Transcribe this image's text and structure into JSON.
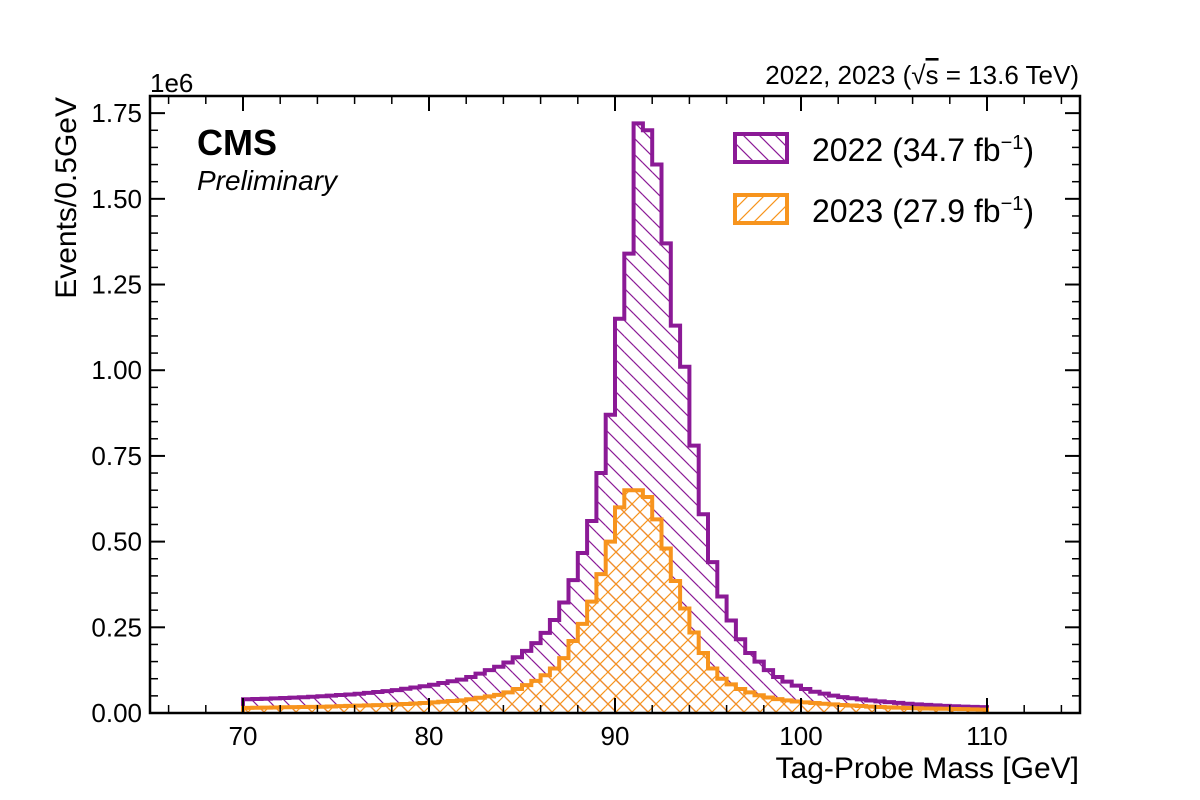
{
  "chart_data": {
    "type": "histogram",
    "header_left": "1e6",
    "header_right": "2022, 2023 (",
    "header_sqrt": "√",
    "header_s": "s",
    "header_right_tail": " = 13.6 TeV)",
    "cms_label": "CMS",
    "cms_sublabel": "Preliminary",
    "xlabel": "Tag-Probe Mass [GeV]",
    "ylabel": "Events/0.5GeV",
    "xlim": [
      65,
      115
    ],
    "ylim": [
      0,
      1.8
    ],
    "y_scale_factor": 1000000,
    "x_ticks": [
      70,
      80,
      90,
      100,
      110
    ],
    "x_tick_labels": [
      "70",
      "80",
      "90",
      "100",
      "110"
    ],
    "y_ticks": [
      0,
      0.25,
      0.5,
      0.75,
      1.0,
      1.25,
      1.5,
      1.75
    ],
    "y_tick_labels": [
      "0.00",
      "0.25",
      "0.50",
      "0.75",
      "1.00",
      "1.25",
      "1.50",
      "1.75"
    ],
    "bin_edges_start": 70,
    "bin_width": 0.5,
    "series": [
      {
        "name": "2022 (34.7 fb",
        "name_sup": "−1",
        "name_close": ")",
        "color": "#8b1a96",
        "hatch": "backslash",
        "anchors": [
          [
            70.25,
            0.04
          ],
          [
            72,
            0.043
          ],
          [
            74,
            0.048
          ],
          [
            76,
            0.055
          ],
          [
            78,
            0.065
          ],
          [
            80,
            0.08
          ],
          [
            82,
            0.1
          ],
          [
            84,
            0.14
          ],
          [
            85,
            0.17
          ],
          [
            86,
            0.215
          ],
          [
            87,
            0.29
          ],
          [
            88,
            0.42
          ],
          [
            88.75,
            0.56
          ],
          [
            89.25,
            0.7
          ],
          [
            89.75,
            0.87
          ],
          [
            90.25,
            1.15
          ],
          [
            90.75,
            1.34
          ],
          [
            91.25,
            1.72
          ],
          [
            91.75,
            1.7
          ],
          [
            92.25,
            1.6
          ],
          [
            92.75,
            1.37
          ],
          [
            93.25,
            1.13
          ],
          [
            93.75,
            1.01
          ],
          [
            94.25,
            0.78
          ],
          [
            94.75,
            0.58
          ],
          [
            95.25,
            0.44
          ],
          [
            95.75,
            0.34
          ],
          [
            96.25,
            0.27
          ],
          [
            96.75,
            0.215
          ],
          [
            97.25,
            0.175
          ],
          [
            97.75,
            0.15
          ],
          [
            98.25,
            0.125
          ],
          [
            98.75,
            0.105
          ],
          [
            99.5,
            0.085
          ],
          [
            100.5,
            0.065
          ],
          [
            102,
            0.048
          ],
          [
            104,
            0.035
          ],
          [
            106,
            0.026
          ],
          [
            108,
            0.02
          ],
          [
            109.75,
            0.017
          ]
        ]
      },
      {
        "name": "2023 (27.9 fb",
        "name_sup": "−1",
        "name_close": ")",
        "color": "#f7941d",
        "hatch": "both",
        "anchors": [
          [
            70.25,
            0.015
          ],
          [
            74,
            0.018
          ],
          [
            78,
            0.024
          ],
          [
            80,
            0.03
          ],
          [
            82,
            0.038
          ],
          [
            84,
            0.055
          ],
          [
            85,
            0.075
          ],
          [
            86,
            0.1
          ],
          [
            86.75,
            0.13
          ],
          [
            87.25,
            0.16
          ],
          [
            87.75,
            0.21
          ],
          [
            88.25,
            0.26
          ],
          [
            88.75,
            0.325
          ],
          [
            89.25,
            0.405
          ],
          [
            89.75,
            0.5
          ],
          [
            90.25,
            0.6
          ],
          [
            90.75,
            0.65
          ],
          [
            91.25,
            0.65
          ],
          [
            91.75,
            0.63
          ],
          [
            92.25,
            0.565
          ],
          [
            92.75,
            0.48
          ],
          [
            93.25,
            0.385
          ],
          [
            93.75,
            0.305
          ],
          [
            94.25,
            0.235
          ],
          [
            94.75,
            0.175
          ],
          [
            95.25,
            0.13
          ],
          [
            95.75,
            0.1
          ],
          [
            96.5,
            0.075
          ],
          [
            97.5,
            0.055
          ],
          [
            98.5,
            0.042
          ],
          [
            100,
            0.032
          ],
          [
            102,
            0.024
          ],
          [
            104,
            0.018
          ],
          [
            106,
            0.014
          ],
          [
            108,
            0.012
          ],
          [
            109.75,
            0.01
          ]
        ]
      }
    ],
    "legend_position": "top-right",
    "grid": false
  }
}
